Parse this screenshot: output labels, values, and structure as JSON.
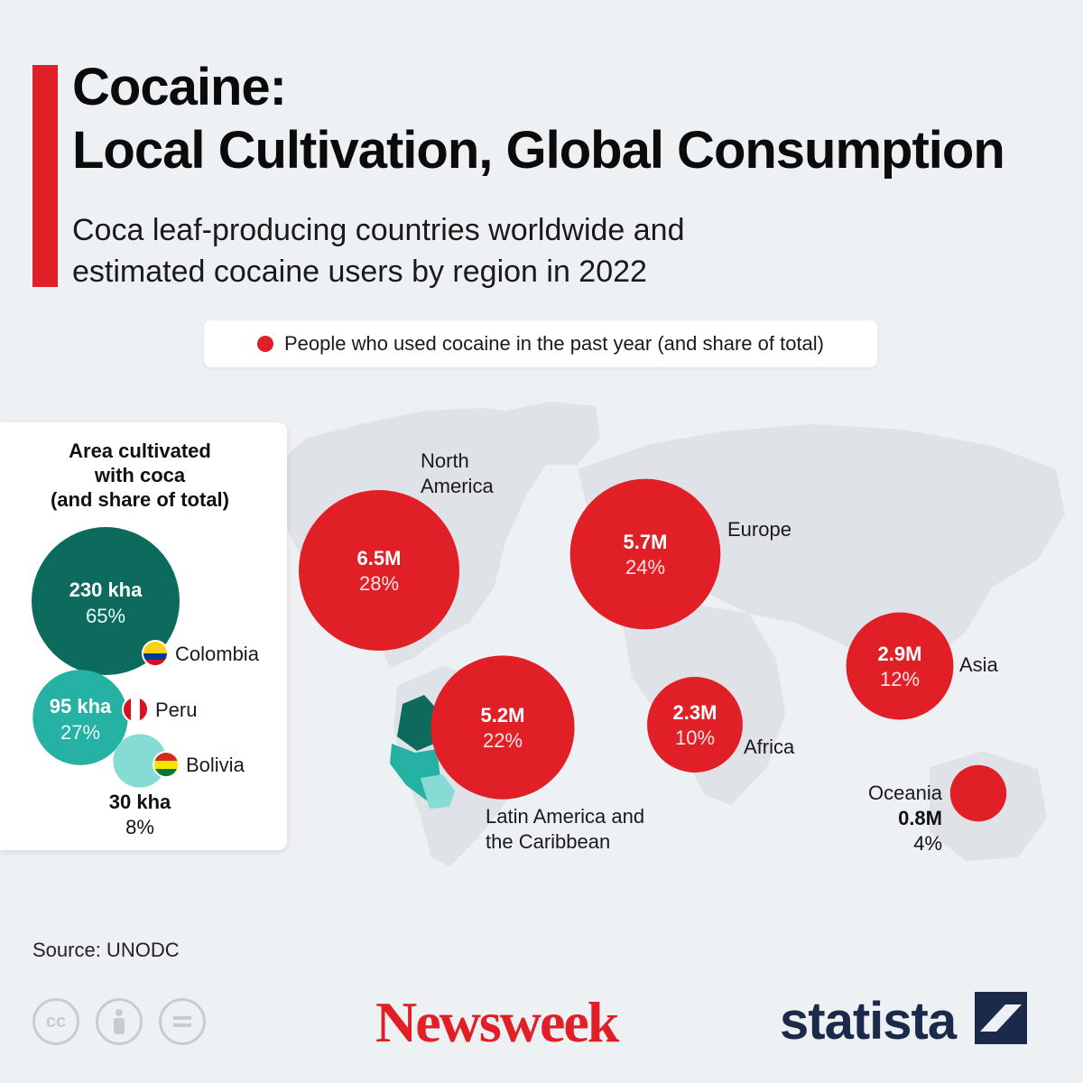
{
  "header": {
    "title": "Cocaine:\nLocal Cultivation, Global Consumption",
    "subtitle": "Coca leaf-producing countries worldwide and estimated cocaine users by region in 2022"
  },
  "legend": {
    "label": "People who used cocaine in the past year (and share of total)"
  },
  "panel": {
    "title": "Area cultivated\nwith coca\n(and share of total)"
  },
  "colors": {
    "accent": "#e01f26",
    "bubble_red": "#e01f26",
    "colombia": "#0d6b5e",
    "peru": "#25b1a3",
    "bolivia": "#86dbd4",
    "map_land": "#dfe2e6",
    "background": "#eef1f4"
  },
  "chart_data": [
    {
      "type": "bubble",
      "title": "People who used cocaine in the past year (and share of total)",
      "units": "million people",
      "series": [
        {
          "region": "North America",
          "value": 6.5,
          "value_label": "6.5M",
          "share": "28%"
        },
        {
          "region": "Europe",
          "value": 5.7,
          "value_label": "5.7M",
          "share": "24%"
        },
        {
          "region": "Latin America and the Caribbean",
          "value": 5.2,
          "value_label": "5.2M",
          "share": "22%"
        },
        {
          "region": "Asia",
          "value": 2.9,
          "value_label": "2.9M",
          "share": "12%"
        },
        {
          "region": "Africa",
          "value": 2.3,
          "value_label": "2.3M",
          "share": "10%"
        },
        {
          "region": "Oceania",
          "value": 0.8,
          "value_label": "0.8M",
          "share": "4%"
        }
      ]
    },
    {
      "type": "bubble",
      "title": "Area cultivated with coca (and share of total)",
      "units": "kha",
      "series": [
        {
          "country": "Colombia",
          "value": 230,
          "value_label": "230 kha",
          "share": "65%"
        },
        {
          "country": "Peru",
          "value": 95,
          "value_label": "95 kha",
          "share": "27%"
        },
        {
          "country": "Bolivia",
          "value": 30,
          "value_label": "30 kha",
          "share": "8%"
        }
      ]
    }
  ],
  "footer": {
    "source": "Source: UNODC",
    "newsweek": "Newsweek",
    "statista": "statista",
    "cc_icons": [
      "cc-icon",
      "attribution-icon",
      "no-derivatives-icon"
    ]
  }
}
